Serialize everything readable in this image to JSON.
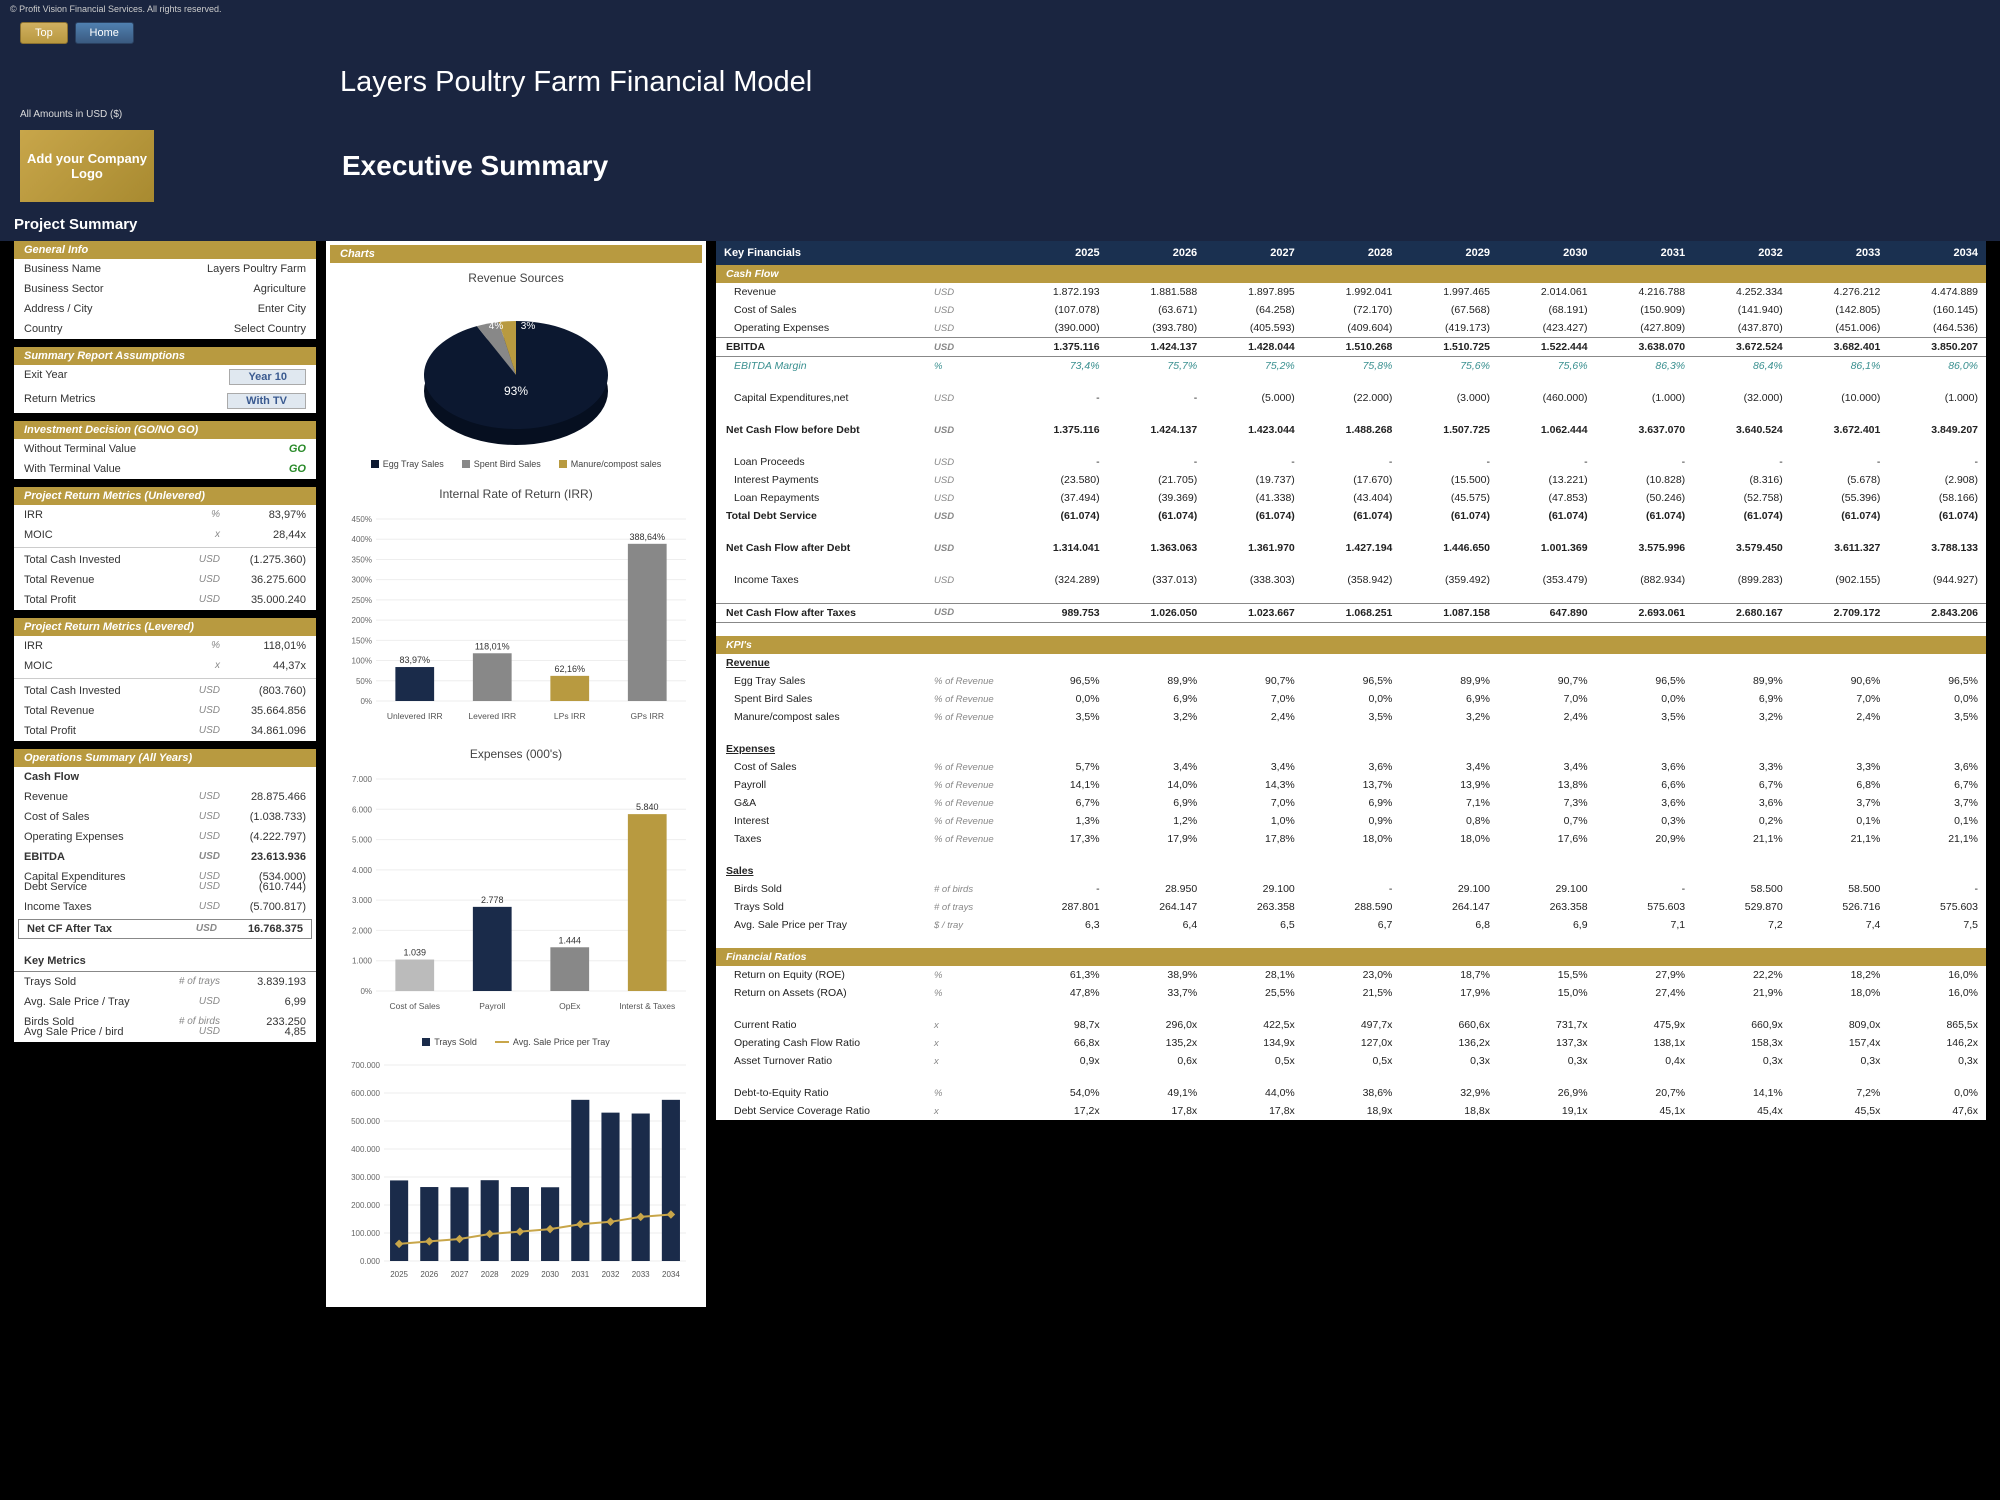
{
  "copyright": "© Profit Vision Financial Services. All rights reserved.",
  "nav": {
    "top": "Top",
    "home": "Home"
  },
  "page_title": "Layers Poultry Farm Financial Model",
  "amounts_note": "All Amounts in USD ($)",
  "logo_text": "Add your Company Logo",
  "exec_title": "Executive Summary",
  "proj_sum": "Project Summary",
  "colors": {
    "gold": "#b89a40",
    "navy": "#1a2b4a",
    "darknavy": "#0c1830",
    "gray": "#888888",
    "lightgray": "#bbbbbb"
  },
  "general_info": {
    "hdr": "General Info",
    "rows": [
      {
        "lbl": "Business Name",
        "val": "Layers Poultry Farm"
      },
      {
        "lbl": "Business Sector",
        "val": "Agriculture"
      },
      {
        "lbl": "Address / City",
        "val": "Enter City"
      },
      {
        "lbl": "Country",
        "val": "Select Country"
      }
    ]
  },
  "summary_assump": {
    "hdr": "Summary Report Assumptions",
    "rows": [
      {
        "lbl": "Exit Year",
        "btn": "Year 10"
      },
      {
        "lbl": "Return Metrics",
        "btn": "With TV"
      }
    ]
  },
  "inv_decision": {
    "hdr": "Investment Decision (GO/NO GO)",
    "rows": [
      {
        "lbl": "Without Terminal Value",
        "val": "GO"
      },
      {
        "lbl": "With Terminal Value",
        "val": "GO"
      }
    ]
  },
  "unlevered": {
    "hdr": "Project Return Metrics (Unlevered)",
    "rows": [
      {
        "lbl": "IRR",
        "unit": "%",
        "val": "83,97%"
      },
      {
        "lbl": "MOIC",
        "unit": "x",
        "val": "28,44x"
      },
      {
        "lbl": "Total Cash Invested",
        "unit": "USD",
        "val": "(1.275.360)",
        "sep": true
      },
      {
        "lbl": "Total Revenue",
        "unit": "USD",
        "val": "36.275.600"
      },
      {
        "lbl": "Total Profit",
        "unit": "USD",
        "val": "35.000.240"
      }
    ]
  },
  "levered": {
    "hdr": "Project Return Metrics (Levered)",
    "rows": [
      {
        "lbl": "IRR",
        "unit": "%",
        "val": "118,01%"
      },
      {
        "lbl": "MOIC",
        "unit": "x",
        "val": "44,37x"
      },
      {
        "lbl": "Total Cash Invested",
        "unit": "USD",
        "val": "(803.760)",
        "sep": true
      },
      {
        "lbl": "Total Revenue",
        "unit": "USD",
        "val": "35.664.856"
      },
      {
        "lbl": "Total Profit",
        "unit": "USD",
        "val": "34.861.096"
      }
    ]
  },
  "ops": {
    "hdr": "Operations Summary (All Years)",
    "cf_hdr": "Cash Flow",
    "rows": [
      {
        "lbl": "Revenue",
        "unit": "USD",
        "val": "28.875.466"
      },
      {
        "lbl": "Cost of Sales",
        "unit": "USD",
        "val": "(1.038.733)"
      },
      {
        "lbl": "Operating Expenses",
        "unit": "USD",
        "val": "(4.222.797)"
      },
      {
        "lbl": "EBITDA",
        "unit": "USD",
        "val": "23.613.936",
        "bold": true
      },
      {
        "lbl": "Capital Expenditures",
        "unit": "USD",
        "val": "(534.000)",
        "sp": true
      },
      {
        "lbl": "Debt Service",
        "unit": "USD",
        "val": "(610.744)"
      },
      {
        "lbl": "Income Taxes",
        "unit": "USD",
        "val": "(5.700.817)"
      },
      {
        "lbl": "Net CF After Tax",
        "unit": "USD",
        "val": "16.768.375",
        "bold": true,
        "border": true
      }
    ],
    "km_hdr": "Key Metrics",
    "km": [
      {
        "lbl": "Trays Sold",
        "unit": "# of trays",
        "val": "3.839.193"
      },
      {
        "lbl": "Avg. Sale Price / Tray",
        "unit": "USD",
        "val": "6,99"
      },
      {
        "lbl": "Birds Sold",
        "unit": "# of birds",
        "val": "233.250",
        "sp": true
      },
      {
        "lbl": "Avg Sale Price / bird",
        "unit": "USD",
        "val": "4,85"
      }
    ]
  },
  "charts": {
    "hdr": "Charts",
    "pie": {
      "title": "Revenue Sources",
      "slices": [
        {
          "label": "Egg Tray Sales",
          "pct": 93,
          "color": "#0c1830"
        },
        {
          "label": "Spent Bird Sales",
          "pct": 4,
          "color": "#888888"
        },
        {
          "label": "Manure/compost sales",
          "pct": 3,
          "color": "#b89a40"
        }
      ],
      "legend": [
        "Egg Tray Sales",
        "Spent Bird Sales",
        "Manure/compost sales"
      ]
    },
    "irr": {
      "title": "Internal Rate of Return (IRR)",
      "ylim": [
        0,
        450
      ],
      "ystep": 50,
      "categories": [
        "Unlevered IRR",
        "Levered IRR",
        "LPs IRR",
        "GPs IRR"
      ],
      "values": [
        83.97,
        118.01,
        62.16,
        388.64
      ],
      "labels": [
        "83,97%",
        "118,01%",
        "62,16%",
        "388,64%"
      ],
      "colors": [
        "#1a2b4a",
        "#888888",
        "#b89a40",
        "#888888"
      ]
    },
    "exp": {
      "title": "Expenses (000's)",
      "ylim": [
        0,
        7000
      ],
      "ystep": 1000,
      "categories": [
        "Cost of Sales",
        "Payroll",
        "OpEx",
        "Interst & Taxes"
      ],
      "values": [
        1039,
        2778,
        1444,
        5840
      ],
      "labels": [
        "1.039",
        "2.778",
        "1.444",
        "5.840"
      ],
      "colors": [
        "#bbbbbb",
        "#1a2b4a",
        "#888888",
        "#b89a40"
      ]
    },
    "trays": {
      "legend": [
        "Trays Sold",
        "Avg. Sale Price per Tray"
      ],
      "ylim": [
        0,
        700000
      ],
      "ystep": 100000,
      "categories": [
        "2025",
        "2026",
        "2027",
        "2028",
        "2029",
        "2030",
        "2031",
        "2032",
        "2033",
        "2034"
      ],
      "bar_values": [
        287801,
        264147,
        263358,
        288590,
        264147,
        263358,
        575603,
        529870,
        526716,
        575603
      ],
      "line_values": [
        6.3,
        6.4,
        6.5,
        6.7,
        6.8,
        6.9,
        7.1,
        7.2,
        7.4,
        7.5
      ],
      "bar_color": "#1a2b4a",
      "line_color": "#c8a64a"
    }
  },
  "fin": {
    "hdr": "Key Financials",
    "years": [
      "2025",
      "2026",
      "2027",
      "2028",
      "2029",
      "2030",
      "2031",
      "2032",
      "2033",
      "2034"
    ],
    "cashflow_hdr": "Cash Flow",
    "cashflow": [
      {
        "lbl": "Revenue",
        "unit": "USD",
        "v": [
          "1.872.193",
          "1.881.588",
          "1.897.895",
          "1.992.041",
          "1.997.465",
          "2.014.061",
          "4.216.788",
          "4.252.334",
          "4.276.212",
          "4.474.889"
        ]
      },
      {
        "lbl": "Cost of Sales",
        "unit": "USD",
        "v": [
          "(107.078)",
          "(63.671)",
          "(64.258)",
          "(72.170)",
          "(67.568)",
          "(68.191)",
          "(150.909)",
          "(141.940)",
          "(142.805)",
          "(160.145)"
        ]
      },
      {
        "lbl": "Operating Expenses",
        "unit": "USD",
        "v": [
          "(390.000)",
          "(393.780)",
          "(405.593)",
          "(409.604)",
          "(419.173)",
          "(423.427)",
          "(427.809)",
          "(437.870)",
          "(451.006)",
          "(464.536)"
        ]
      },
      {
        "lbl": "EBITDA",
        "unit": "USD",
        "bold": true,
        "border": true,
        "v": [
          "1.375.116",
          "1.424.137",
          "1.428.044",
          "1.510.268",
          "1.510.725",
          "1.522.444",
          "3.638.070",
          "3.672.524",
          "3.682.401",
          "3.850.207"
        ]
      },
      {
        "lbl": "EBITDA Margin",
        "unit": "%",
        "teal": true,
        "v": [
          "73,4%",
          "75,7%",
          "75,2%",
          "75,8%",
          "75,6%",
          "75,6%",
          "86,3%",
          "86,4%",
          "86,1%",
          "86,0%"
        ]
      },
      {
        "sp": true
      },
      {
        "lbl": "Capital Expenditures,net",
        "unit": "USD",
        "v": [
          "-",
          "-",
          "(5.000)",
          "(22.000)",
          "(3.000)",
          "(460.000)",
          "(1.000)",
          "(32.000)",
          "(10.000)",
          "(1.000)"
        ]
      },
      {
        "sp": true
      },
      {
        "lbl": "Net Cash Flow before Debt",
        "unit": "USD",
        "bold": true,
        "v": [
          "1.375.116",
          "1.424.137",
          "1.423.044",
          "1.488.268",
          "1.507.725",
          "1.062.444",
          "3.637.070",
          "3.640.524",
          "3.672.401",
          "3.849.207"
        ]
      },
      {
        "sp": true
      },
      {
        "lbl": "Loan Proceeds",
        "unit": "USD",
        "v": [
          "-",
          "-",
          "-",
          "-",
          "-",
          "-",
          "-",
          "-",
          "-",
          "-"
        ]
      },
      {
        "lbl": "Interest Payments",
        "unit": "USD",
        "v": [
          "(23.580)",
          "(21.705)",
          "(19.737)",
          "(17.670)",
          "(15.500)",
          "(13.221)",
          "(10.828)",
          "(8.316)",
          "(5.678)",
          "(2.908)"
        ]
      },
      {
        "lbl": "Loan Repayments",
        "unit": "USD",
        "v": [
          "(37.494)",
          "(39.369)",
          "(41.338)",
          "(43.404)",
          "(45.575)",
          "(47.853)",
          "(50.246)",
          "(52.758)",
          "(55.396)",
          "(58.166)"
        ]
      },
      {
        "lbl": "Total Debt Service",
        "unit": "USD",
        "bold": true,
        "v": [
          "(61.074)",
          "(61.074)",
          "(61.074)",
          "(61.074)",
          "(61.074)",
          "(61.074)",
          "(61.074)",
          "(61.074)",
          "(61.074)",
          "(61.074)"
        ]
      },
      {
        "sp": true
      },
      {
        "lbl": "Net Cash Flow after Debt",
        "unit": "USD",
        "bold": true,
        "v": [
          "1.314.041",
          "1.363.063",
          "1.361.970",
          "1.427.194",
          "1.446.650",
          "1.001.369",
          "3.575.996",
          "3.579.450",
          "3.611.327",
          "3.788.133"
        ]
      },
      {
        "sp": true
      },
      {
        "lbl": "Income Taxes",
        "unit": "USD",
        "v": [
          "(324.289)",
          "(337.013)",
          "(338.303)",
          "(358.942)",
          "(359.492)",
          "(353.479)",
          "(882.934)",
          "(899.283)",
          "(902.155)",
          "(944.927)"
        ]
      },
      {
        "sp": true
      },
      {
        "lbl": "Net Cash Flow after Taxes",
        "unit": "USD",
        "bold": true,
        "border": true,
        "v": [
          "989.753",
          "1.026.050",
          "1.023.667",
          "1.068.251",
          "1.087.158",
          "647.890",
          "2.693.061",
          "2.680.167",
          "2.709.172",
          "2.843.206"
        ]
      }
    ],
    "kpi_hdr": "KPI's",
    "kpi_sections": [
      {
        "title": "Revenue",
        "rows": [
          {
            "lbl": "Egg Tray Sales",
            "unit": "% of Revenue",
            "v": [
              "96,5%",
              "89,9%",
              "90,7%",
              "96,5%",
              "89,9%",
              "90,7%",
              "96,5%",
              "89,9%",
              "90,6%",
              "96,5%"
            ]
          },
          {
            "lbl": "Spent Bird Sales",
            "unit": "% of Revenue",
            "v": [
              "0,0%",
              "6,9%",
              "7,0%",
              "0,0%",
              "6,9%",
              "7,0%",
              "0,0%",
              "6,9%",
              "7,0%",
              "0,0%"
            ]
          },
          {
            "lbl": "Manure/compost sales",
            "unit": "% of Revenue",
            "v": [
              "3,5%",
              "3,2%",
              "2,4%",
              "3,5%",
              "3,2%",
              "2,4%",
              "3,5%",
              "3,2%",
              "2,4%",
              "3,5%"
            ]
          }
        ]
      },
      {
        "title": "Expenses",
        "rows": [
          {
            "lbl": "Cost of Sales",
            "unit": "% of Revenue",
            "v": [
              "5,7%",
              "3,4%",
              "3,4%",
              "3,6%",
              "3,4%",
              "3,4%",
              "3,6%",
              "3,3%",
              "3,3%",
              "3,6%"
            ]
          },
          {
            "lbl": "Payroll",
            "unit": "% of Revenue",
            "v": [
              "14,1%",
              "14,0%",
              "14,3%",
              "13,7%",
              "13,9%",
              "13,8%",
              "6,6%",
              "6,7%",
              "6,8%",
              "6,7%"
            ]
          },
          {
            "lbl": "G&A",
            "unit": "% of Revenue",
            "v": [
              "6,7%",
              "6,9%",
              "7,0%",
              "6,9%",
              "7,1%",
              "7,3%",
              "3,6%",
              "3,6%",
              "3,7%",
              "3,7%"
            ]
          },
          {
            "lbl": "Interest",
            "unit": "% of Revenue",
            "v": [
              "1,3%",
              "1,2%",
              "1,0%",
              "0,9%",
              "0,8%",
              "0,7%",
              "0,3%",
              "0,2%",
              "0,1%",
              "0,1%"
            ]
          },
          {
            "lbl": "Taxes",
            "unit": "% of Revenue",
            "v": [
              "17,3%",
              "17,9%",
              "17,8%",
              "18,0%",
              "18,0%",
              "17,6%",
              "20,9%",
              "21,1%",
              "21,1%",
              "21,1%"
            ]
          }
        ]
      },
      {
        "title": "Sales",
        "rows": [
          {
            "lbl": "Birds Sold",
            "unit": "# of birds",
            "v": [
              "-",
              "28.950",
              "29.100",
              "-",
              "29.100",
              "29.100",
              "-",
              "58.500",
              "58.500",
              "-"
            ]
          },
          {
            "lbl": "Trays Sold",
            "unit": "# of trays",
            "v": [
              "287.801",
              "264.147",
              "263.358",
              "288.590",
              "264.147",
              "263.358",
              "575.603",
              "529.870",
              "526.716",
              "575.603"
            ]
          },
          {
            "lbl": "Avg. Sale Price per Tray",
            "unit": "$ / tray",
            "v": [
              "6,3",
              "6,4",
              "6,5",
              "6,7",
              "6,8",
              "6,9",
              "7,1",
              "7,2",
              "7,4",
              "7,5"
            ]
          }
        ]
      }
    ],
    "ratio_hdr": "Financial Ratios",
    "ratios": [
      {
        "lbl": "Return on Equity (ROE)",
        "unit": "%",
        "v": [
          "61,3%",
          "38,9%",
          "28,1%",
          "23,0%",
          "18,7%",
          "15,5%",
          "27,9%",
          "22,2%",
          "18,2%",
          "16,0%"
        ]
      },
      {
        "lbl": "Return on Assets (ROA)",
        "unit": "%",
        "v": [
          "47,8%",
          "33,7%",
          "25,5%",
          "21,5%",
          "17,9%",
          "15,0%",
          "27,4%",
          "21,9%",
          "18,0%",
          "16,0%"
        ]
      },
      {
        "sp": true
      },
      {
        "lbl": "Current Ratio",
        "unit": "x",
        "v": [
          "98,7x",
          "296,0x",
          "422,5x",
          "497,7x",
          "660,6x",
          "731,7x",
          "475,9x",
          "660,9x",
          "809,0x",
          "865,5x"
        ]
      },
      {
        "lbl": "Operating Cash Flow Ratio",
        "unit": "x",
        "v": [
          "66,8x",
          "135,2x",
          "134,9x",
          "127,0x",
          "136,2x",
          "137,3x",
          "138,1x",
          "158,3x",
          "157,4x",
          "146,2x"
        ]
      },
      {
        "lbl": "Asset Turnover Ratio",
        "unit": "x",
        "v": [
          "0,9x",
          "0,6x",
          "0,5x",
          "0,5x",
          "0,3x",
          "0,3x",
          "0,4x",
          "0,3x",
          "0,3x",
          "0,3x"
        ]
      },
      {
        "sp": true
      },
      {
        "lbl": "Debt-to-Equity Ratio",
        "unit": "%",
        "v": [
          "54,0%",
          "49,1%",
          "44,0%",
          "38,6%",
          "32,9%",
          "26,9%",
          "20,7%",
          "14,1%",
          "7,2%",
          "0,0%"
        ]
      },
      {
        "lbl": "Debt Service Coverage Ratio",
        "unit": "x",
        "v": [
          "17,2x",
          "17,8x",
          "17,8x",
          "18,9x",
          "18,8x",
          "19,1x",
          "45,1x",
          "45,4x",
          "45,5x",
          "47,6x"
        ]
      }
    ]
  }
}
